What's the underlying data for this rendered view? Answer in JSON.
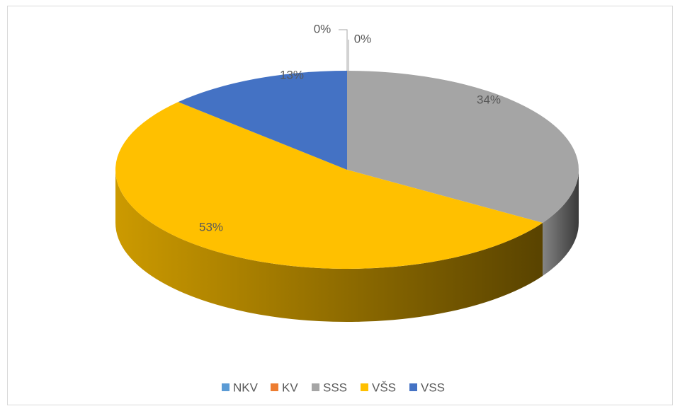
{
  "chart_data": {
    "type": "pie3d",
    "categories": [
      "NKV",
      "KV",
      "SSS",
      "VŠS",
      "VSS"
    ],
    "values": [
      0,
      0,
      34,
      53,
      13
    ],
    "value_labels": [
      "0%",
      "0%",
      "34%",
      "53%",
      "13%"
    ],
    "colors": [
      "#5b9bd5",
      "#ed7d31",
      "#a5a5a5",
      "#ffc000",
      "#4472c4"
    ],
    "legend": "bottom"
  }
}
